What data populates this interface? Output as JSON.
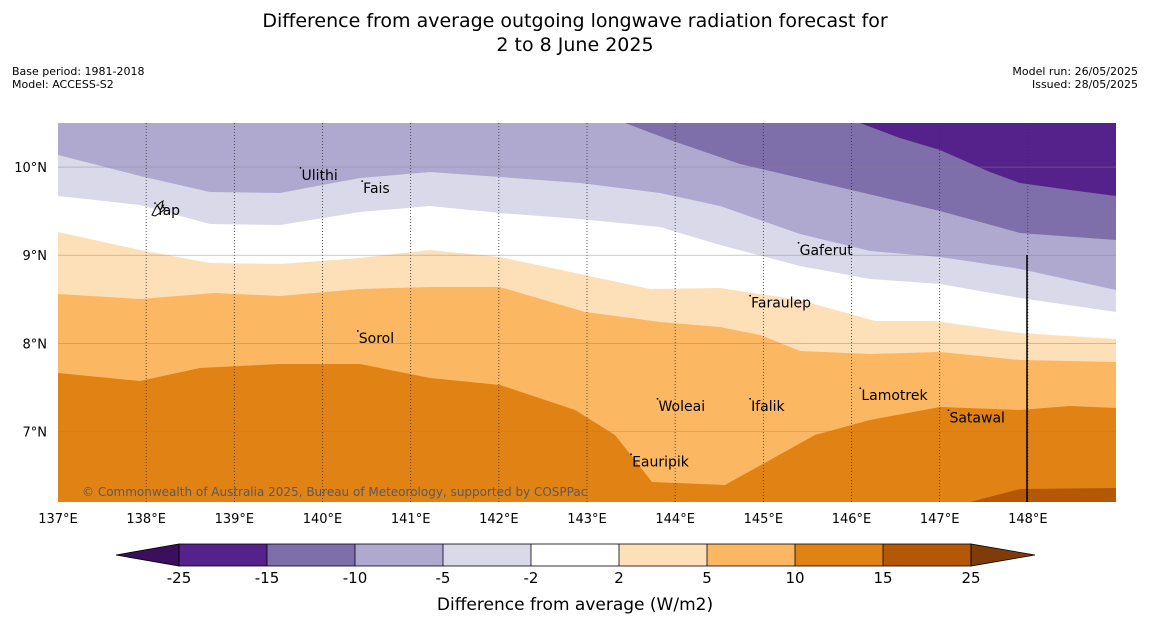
{
  "title": {
    "line1": "Difference from average outgoing longwave radiation forecast for",
    "line2": "2 to 8 June 2025"
  },
  "meta": {
    "base_period": "Base period: 1981-2018",
    "model": "Model: ACCESS-S2",
    "model_run": "Model run: 26/05/2025",
    "issued": "Issued: 28/05/2025"
  },
  "map": {
    "lon_range": [
      137,
      149
    ],
    "lat_range": [
      6.2,
      10.5
    ],
    "lon_ticks": [
      {
        "value": 137,
        "label": "137°E"
      },
      {
        "value": 138,
        "label": "138°E"
      },
      {
        "value": 139,
        "label": "139°E"
      },
      {
        "value": 140,
        "label": "140°E"
      },
      {
        "value": 141,
        "label": "141°E"
      },
      {
        "value": 142,
        "label": "142°E"
      },
      {
        "value": 143,
        "label": "143°E"
      },
      {
        "value": 144,
        "label": "144°E"
      },
      {
        "value": 145,
        "label": "145°E"
      },
      {
        "value": 146,
        "label": "146°E"
      },
      {
        "value": 147,
        "label": "147°E"
      },
      {
        "value": 148,
        "label": "148°E"
      }
    ],
    "lat_ticks": [
      {
        "value": 10,
        "label": "10°N"
      },
      {
        "value": 9,
        "label": "9°N"
      },
      {
        "value": 8,
        "label": "8°N"
      },
      {
        "value": 7,
        "label": "7°N"
      }
    ],
    "places": [
      {
        "name": "Ulithi",
        "lon": 139.75,
        "lat": 9.9
      },
      {
        "name": "Fais",
        "lon": 140.45,
        "lat": 9.75
      },
      {
        "name": "Yap",
        "lon": 138.1,
        "lat": 9.5
      },
      {
        "name": "Gaferut",
        "lon": 145.4,
        "lat": 9.05
      },
      {
        "name": "Faraulep",
        "lon": 144.85,
        "lat": 8.45
      },
      {
        "name": "Sorol",
        "lon": 140.4,
        "lat": 8.05
      },
      {
        "name": "Lamotrek",
        "lon": 146.1,
        "lat": 7.4
      },
      {
        "name": "Woleai",
        "lon": 143.8,
        "lat": 7.28
      },
      {
        "name": "Ifalik",
        "lon": 144.85,
        "lat": 7.28
      },
      {
        "name": "Satawal",
        "lon": 147.1,
        "lat": 7.15
      },
      {
        "name": "Eauripik",
        "lon": 143.5,
        "lat": 6.65
      }
    ],
    "copyright": "© Commonwealth of Australia 2025, Bureau of Meteorology, supported by COSPPac"
  },
  "colorbar": {
    "label": "Difference from average (W/m2)",
    "ticks": [
      "-25",
      "-15",
      "-10",
      "-5",
      "-2",
      "2",
      "5",
      "10",
      "15",
      "25"
    ],
    "colors": [
      "#55218a",
      "#7e6ea9",
      "#afa9d0",
      "#d9d9ea",
      "#ffffff",
      "#fde0b7",
      "#fbb762",
      "#e08214",
      "#b45806"
    ],
    "low_extend_color": "#3b0f5e",
    "high_extend_color": "#7f3b08"
  }
}
